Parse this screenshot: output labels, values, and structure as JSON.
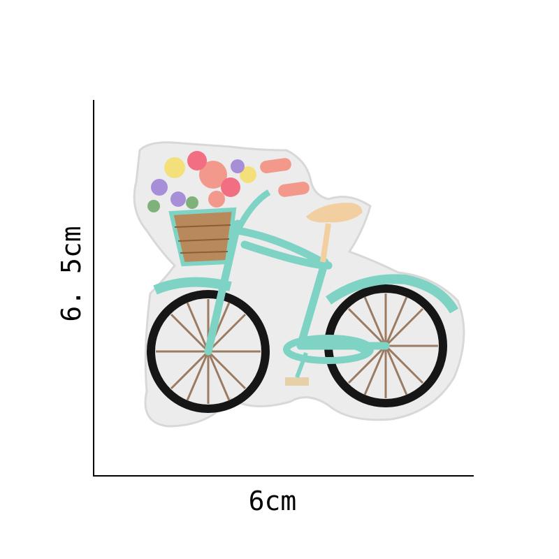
{
  "dimensions": {
    "width_label": "6cm",
    "height_label": "6. 5cm"
  },
  "colors": {
    "patch_bg": "#ececec",
    "patch_edge": "#d8d8d8",
    "frame": "#7fd3c4",
    "tire": "#161616",
    "spoke": "#9b7b62",
    "seat": "#f2cfa0",
    "basket": "#b8895a",
    "grip": "#f2998c"
  }
}
